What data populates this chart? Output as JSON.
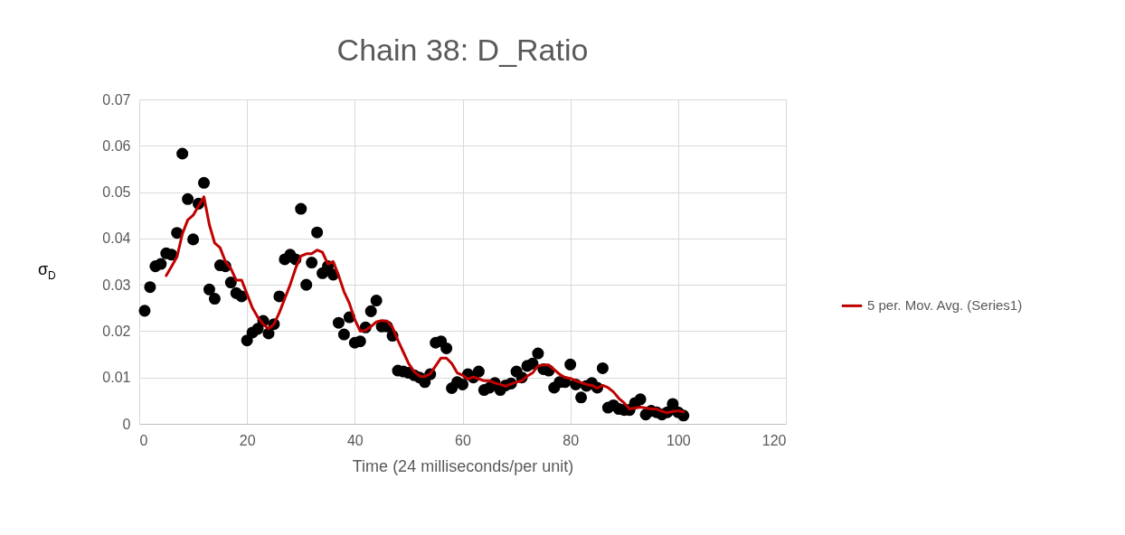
{
  "chart_data": {
    "type": "scatter",
    "title": "Chain 38:  D_Ratio",
    "xlabel": "Time (24 milliseconds/per unit)",
    "ylabel": "σ$_{D}$",
    "xlim": [
      0,
      120
    ],
    "xticks": [
      0,
      20,
      40,
      60,
      80,
      100,
      120
    ],
    "ylim": [
      0,
      0.07
    ],
    "yticks": [
      0,
      0.01,
      0.02,
      0.03,
      0.04,
      0.05,
      0.06,
      0.07
    ],
    "grid": true,
    "legend": "right",
    "marker": "circle",
    "series": [
      {
        "color": "#000000",
        "x": [
          1,
          2,
          3,
          4,
          5,
          6,
          7,
          8,
          9,
          10,
          11,
          12,
          13,
          14,
          15,
          16,
          17,
          18,
          19,
          20,
          21,
          22,
          23,
          24,
          25,
          26,
          27,
          28,
          29,
          30,
          31,
          32,
          33,
          34,
          35,
          36,
          37,
          38,
          39,
          40,
          41,
          42,
          43,
          44,
          45,
          46,
          47,
          48,
          49,
          50,
          51,
          52,
          53,
          54,
          55,
          56,
          57,
          58,
          59,
          60,
          61,
          62,
          63,
          64,
          65,
          66,
          67,
          68,
          69,
          70,
          71,
          72,
          73,
          74,
          75,
          76,
          77,
          78,
          79,
          80,
          81,
          82,
          83,
          84,
          85,
          86,
          87,
          88,
          89,
          90,
          91,
          92,
          93,
          94,
          95,
          96,
          97,
          98,
          99,
          100,
          101
        ],
        "values": [
          0.0244,
          0.0295,
          0.034,
          0.0345,
          0.0368,
          0.0365,
          0.0412,
          0.0583,
          0.0485,
          0.0398,
          0.0475,
          0.052,
          0.029,
          0.027,
          0.0342,
          0.034,
          0.0305,
          0.0282,
          0.0275,
          0.018,
          0.0197,
          0.0205,
          0.0222,
          0.0195,
          0.0215,
          0.0275,
          0.0355,
          0.0365,
          0.0355,
          0.0464,
          0.03,
          0.0348,
          0.0413,
          0.0325,
          0.034,
          0.0322,
          0.0218,
          0.0193,
          0.023,
          0.0175,
          0.0178,
          0.0208,
          0.0243,
          0.0266,
          0.021,
          0.021,
          0.019,
          0.0115,
          0.0113,
          0.011,
          0.0105,
          0.01,
          0.009,
          0.0107,
          0.0175,
          0.0178,
          0.0163,
          0.0077,
          0.009,
          0.0085,
          0.0107,
          0.01,
          0.0113,
          0.0073,
          0.0078,
          0.0088,
          0.0073,
          0.0083,
          0.0087,
          0.0113,
          0.01,
          0.0125,
          0.013,
          0.0152,
          0.0118,
          0.0115,
          0.0078,
          0.009,
          0.009,
          0.0128,
          0.0085,
          0.0057,
          0.0082,
          0.0088,
          0.0078,
          0.012,
          0.0035,
          0.004,
          0.0032,
          0.003,
          0.003,
          0.0045,
          0.0053,
          0.002,
          0.0028,
          0.0025,
          0.002,
          0.0025,
          0.0043,
          0.0025,
          0.0018
        ]
      },
      {
        "type": "line",
        "name": "5 per. Mov. Avg. (Series1)",
        "color": "#c00000",
        "marker": "none",
        "line_style": "solid",
        "x": [
          5,
          6,
          7,
          8,
          9,
          10,
          11,
          12,
          13,
          14,
          15,
          16,
          17,
          18,
          19,
          20,
          21,
          22,
          23,
          24,
          25,
          26,
          27,
          28,
          29,
          30,
          31,
          32,
          33,
          34,
          35,
          36,
          37,
          38,
          39,
          40,
          41,
          42,
          43,
          44,
          45,
          46,
          47,
          48,
          49,
          50,
          51,
          52,
          53,
          54,
          55,
          56,
          57,
          58,
          59,
          60,
          61,
          62,
          63,
          64,
          65,
          66,
          67,
          68,
          69,
          70,
          71,
          72,
          73,
          74,
          75,
          76,
          77,
          78,
          79,
          80,
          81,
          82,
          83,
          84,
          85,
          86,
          87,
          88,
          89,
          90,
          91,
          92,
          93,
          94,
          95,
          96,
          97,
          98,
          99,
          100,
          101
        ],
        "values": [
          0.032,
          0.034,
          0.036,
          0.041,
          0.044,
          0.045,
          0.047,
          0.049,
          0.043,
          0.039,
          0.038,
          0.035,
          0.0335,
          0.031,
          0.031,
          0.028,
          0.025,
          0.023,
          0.0215,
          0.0205,
          0.0215,
          0.024,
          0.027,
          0.03,
          0.0335,
          0.0362,
          0.0367,
          0.0367,
          0.0375,
          0.037,
          0.0345,
          0.035,
          0.032,
          0.0285,
          0.026,
          0.0225,
          0.02,
          0.0202,
          0.021,
          0.022,
          0.0223,
          0.0222,
          0.0208,
          0.018,
          0.0155,
          0.013,
          0.0113,
          0.0103,
          0.0102,
          0.0108,
          0.0125,
          0.0142,
          0.0142,
          0.013,
          0.011,
          0.0105,
          0.0097,
          0.0101,
          0.0097,
          0.0093,
          0.0093,
          0.0088,
          0.0085,
          0.0081,
          0.0086,
          0.009,
          0.0093,
          0.0103,
          0.011,
          0.0125,
          0.0127,
          0.0127,
          0.0117,
          0.0107,
          0.01,
          0.0098,
          0.0093,
          0.0089,
          0.0085,
          0.0083,
          0.0077,
          0.0083,
          0.0078,
          0.0069,
          0.0055,
          0.0045,
          0.0032,
          0.0034,
          0.0036,
          0.0034,
          0.0032,
          0.0032,
          0.0027,
          0.0024,
          0.0027,
          0.0028,
          0.0026
        ]
      }
    ]
  }
}
